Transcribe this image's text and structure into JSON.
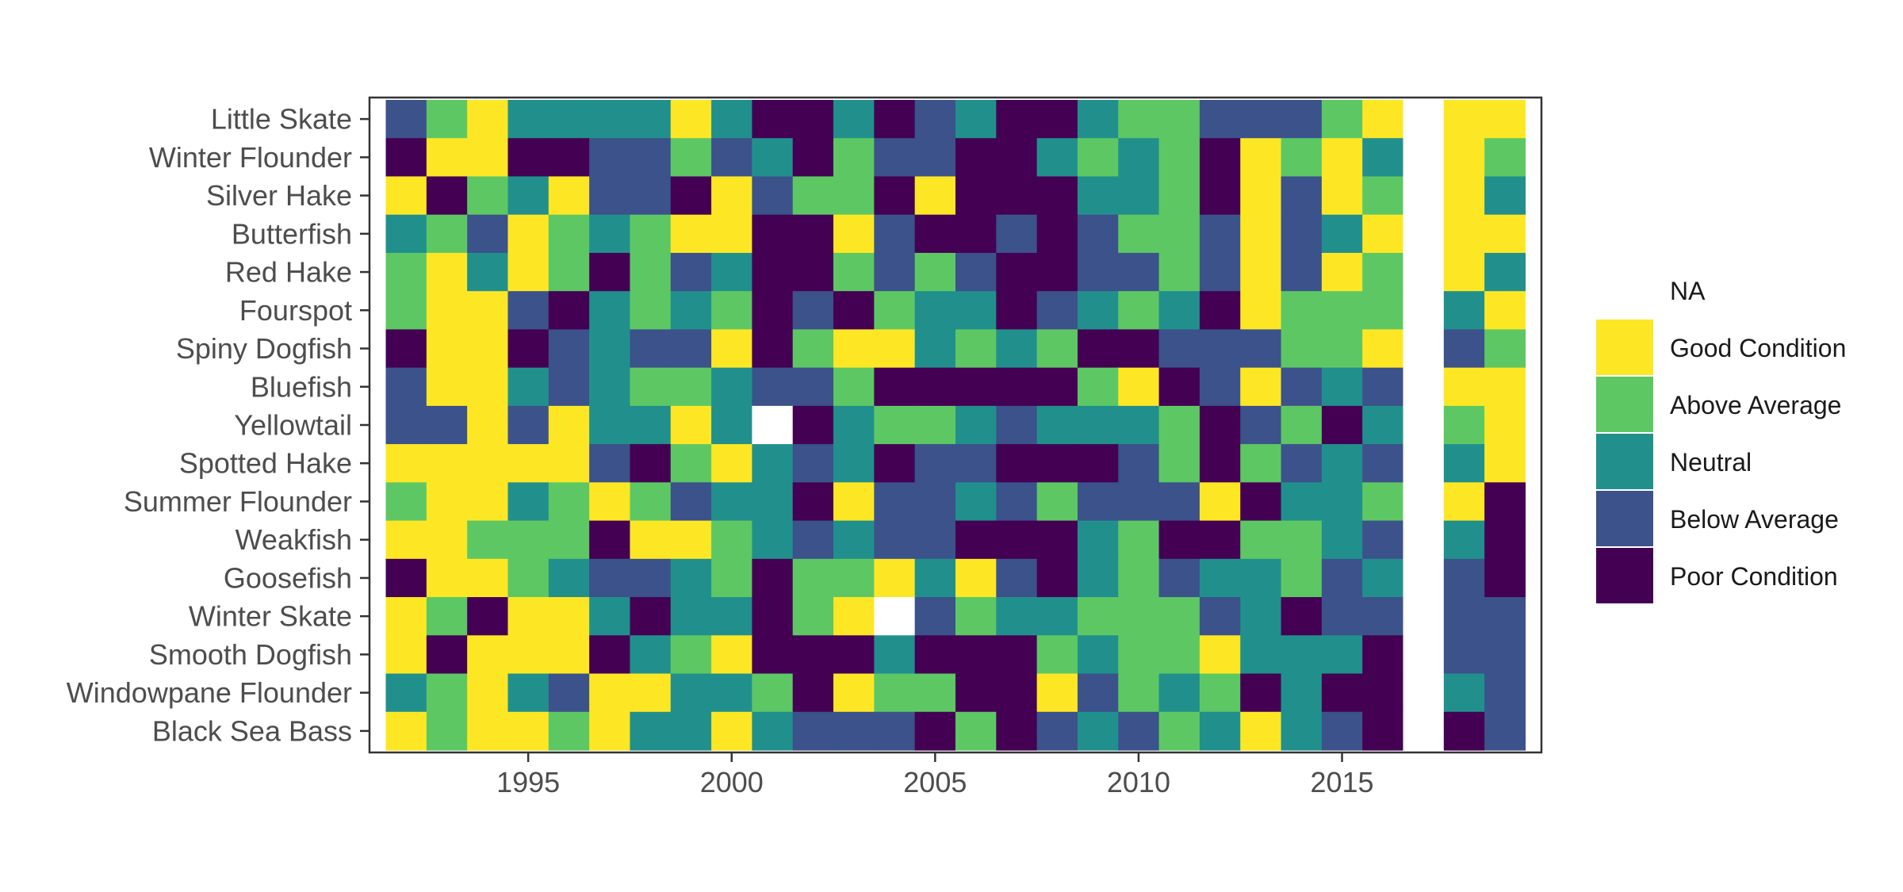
{
  "chart_data": {
    "type": "heatmap",
    "title": "",
    "xlabel": "",
    "ylabel": "",
    "x": [
      1992,
      1993,
      1994,
      1995,
      1996,
      1997,
      1998,
      1999,
      2000,
      2001,
      2002,
      2003,
      2004,
      2005,
      2006,
      2007,
      2008,
      2009,
      2010,
      2011,
      2012,
      2013,
      2014,
      2015,
      2016,
      2017,
      2018,
      2019
    ],
    "xlim": [
      1991.1,
      2019.9
    ],
    "x_ticks": [
      "1995",
      "2000",
      "2005",
      "2010",
      "2015"
    ],
    "y_categories": [
      "Little Skate",
      "Winter Flounder",
      "Silver Hake",
      "Butterfish",
      "Red Hake",
      "Fourspot",
      "Spiny Dogfish",
      "Bluefish",
      "Yellowtail",
      "Spotted Hake",
      "Summer Flounder",
      "Weakfish",
      "Goosefish",
      "Winter Skate",
      "Smooth Dogfish",
      "Windowpane Flounder",
      "Black Sea Bass"
    ],
    "grid": false,
    "legend_position": "right",
    "legend": [
      {
        "key": "NA",
        "label": "NA",
        "color": "#ffffff"
      },
      {
        "key": "G",
        "label": "Good Condition",
        "color": "#FDE725"
      },
      {
        "key": "A",
        "label": "Above Average",
        "color": "#5DC863"
      },
      {
        "key": "N",
        "label": "Neutral",
        "color": "#21908C"
      },
      {
        "key": "B",
        "label": "Below Average",
        "color": "#3B528B"
      },
      {
        "key": "P",
        "label": "Poor Condition",
        "color": "#440154"
      }
    ],
    "values": [
      [
        "B",
        "A",
        "G",
        "N",
        "N",
        "N",
        "N",
        "G",
        "N",
        "P",
        "P",
        "N",
        "P",
        "B",
        "N",
        "P",
        "P",
        "N",
        "A",
        "A",
        "B",
        "B",
        "B",
        "A",
        "G",
        "NA",
        "G",
        "G"
      ],
      [
        "P",
        "G",
        "G",
        "P",
        "P",
        "B",
        "B",
        "A",
        "B",
        "N",
        "P",
        "A",
        "B",
        "B",
        "P",
        "P",
        "N",
        "A",
        "N",
        "A",
        "P",
        "G",
        "A",
        "G",
        "N",
        "NA",
        "G",
        "A"
      ],
      [
        "G",
        "P",
        "A",
        "N",
        "G",
        "B",
        "B",
        "P",
        "G",
        "B",
        "A",
        "A",
        "P",
        "G",
        "P",
        "P",
        "P",
        "N",
        "N",
        "A",
        "P",
        "G",
        "B",
        "G",
        "A",
        "NA",
        "G",
        "N"
      ],
      [
        "N",
        "A",
        "B",
        "G",
        "A",
        "N",
        "A",
        "G",
        "G",
        "P",
        "P",
        "G",
        "B",
        "P",
        "P",
        "B",
        "P",
        "B",
        "A",
        "A",
        "B",
        "G",
        "B",
        "N",
        "G",
        "NA",
        "G",
        "G"
      ],
      [
        "A",
        "G",
        "N",
        "G",
        "A",
        "P",
        "A",
        "B",
        "N",
        "P",
        "P",
        "A",
        "B",
        "A",
        "B",
        "P",
        "P",
        "B",
        "B",
        "A",
        "B",
        "G",
        "B",
        "G",
        "A",
        "NA",
        "G",
        "N"
      ],
      [
        "A",
        "G",
        "G",
        "B",
        "P",
        "N",
        "A",
        "N",
        "A",
        "P",
        "B",
        "P",
        "A",
        "N",
        "N",
        "P",
        "B",
        "N",
        "A",
        "N",
        "P",
        "G",
        "A",
        "A",
        "A",
        "NA",
        "N",
        "G"
      ],
      [
        "P",
        "G",
        "G",
        "P",
        "B",
        "N",
        "B",
        "B",
        "G",
        "P",
        "A",
        "G",
        "G",
        "N",
        "A",
        "N",
        "A",
        "P",
        "P",
        "B",
        "B",
        "B",
        "A",
        "A",
        "G",
        "NA",
        "B",
        "A"
      ],
      [
        "B",
        "G",
        "G",
        "N",
        "B",
        "N",
        "A",
        "A",
        "N",
        "B",
        "B",
        "A",
        "P",
        "P",
        "P",
        "P",
        "P",
        "A",
        "G",
        "P",
        "B",
        "G",
        "B",
        "N",
        "B",
        "NA",
        "G",
        "G"
      ],
      [
        "B",
        "B",
        "G",
        "B",
        "G",
        "N",
        "N",
        "G",
        "N",
        "NA",
        "P",
        "N",
        "A",
        "A",
        "N",
        "B",
        "N",
        "N",
        "N",
        "A",
        "P",
        "B",
        "A",
        "P",
        "N",
        "NA",
        "A",
        "G"
      ],
      [
        "G",
        "G",
        "G",
        "G",
        "G",
        "B",
        "P",
        "A",
        "G",
        "N",
        "B",
        "N",
        "P",
        "B",
        "B",
        "P",
        "P",
        "P",
        "B",
        "A",
        "P",
        "A",
        "B",
        "N",
        "B",
        "NA",
        "N",
        "G"
      ],
      [
        "A",
        "G",
        "G",
        "N",
        "A",
        "G",
        "A",
        "B",
        "N",
        "N",
        "P",
        "G",
        "B",
        "B",
        "N",
        "B",
        "A",
        "B",
        "B",
        "B",
        "G",
        "P",
        "N",
        "N",
        "A",
        "NA",
        "G",
        "P"
      ],
      [
        "G",
        "G",
        "A",
        "A",
        "A",
        "P",
        "G",
        "G",
        "A",
        "N",
        "B",
        "N",
        "B",
        "B",
        "P",
        "P",
        "P",
        "N",
        "A",
        "P",
        "P",
        "A",
        "A",
        "N",
        "B",
        "NA",
        "N",
        "P"
      ],
      [
        "P",
        "G",
        "G",
        "A",
        "N",
        "B",
        "B",
        "N",
        "A",
        "P",
        "A",
        "A",
        "G",
        "N",
        "G",
        "B",
        "P",
        "N",
        "A",
        "B",
        "N",
        "N",
        "A",
        "B",
        "N",
        "NA",
        "B",
        "P"
      ],
      [
        "G",
        "A",
        "P",
        "G",
        "G",
        "N",
        "P",
        "N",
        "N",
        "P",
        "A",
        "G",
        "NA",
        "B",
        "A",
        "N",
        "N",
        "A",
        "A",
        "A",
        "B",
        "N",
        "P",
        "B",
        "B",
        "NA",
        "B",
        "B"
      ],
      [
        "G",
        "P",
        "G",
        "G",
        "G",
        "P",
        "N",
        "A",
        "G",
        "P",
        "P",
        "P",
        "N",
        "P",
        "P",
        "P",
        "A",
        "N",
        "A",
        "A",
        "G",
        "N",
        "N",
        "N",
        "P",
        "NA",
        "B",
        "B"
      ],
      [
        "N",
        "A",
        "G",
        "N",
        "B",
        "G",
        "G",
        "N",
        "N",
        "A",
        "P",
        "G",
        "A",
        "A",
        "P",
        "P",
        "G",
        "B",
        "A",
        "N",
        "A",
        "P",
        "N",
        "P",
        "P",
        "NA",
        "N",
        "B"
      ],
      [
        "G",
        "A",
        "G",
        "G",
        "A",
        "G",
        "N",
        "N",
        "G",
        "N",
        "B",
        "B",
        "B",
        "P",
        "A",
        "P",
        "B",
        "N",
        "B",
        "A",
        "N",
        "G",
        "N",
        "B",
        "P",
        "NA",
        "P",
        "B"
      ]
    ]
  }
}
